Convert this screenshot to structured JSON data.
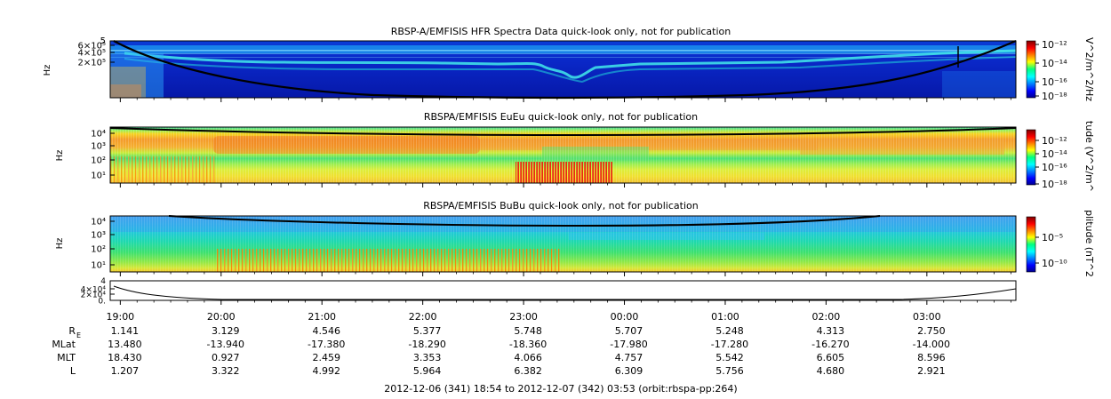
{
  "chart_data": [
    {
      "type": "heatmap",
      "title": "RBSP-A/EMFISIS  HFR Spectra Data quick-look only, not for publication",
      "ylabel": "Hz",
      "yticks": [
        "6×10⁵",
        "4×10⁵",
        "2×10⁵"
      ],
      "y_top_label": "5",
      "ylim": [
        10000,
        600000
      ],
      "yscale": "log",
      "colorbar": {
        "label": "V^2/m^2/Hz",
        "ticks": [
          "10⁻¹²",
          "10⁻¹⁴",
          "10⁻¹⁶",
          "10⁻¹⁸"
        ],
        "range": [
          1e-18,
          1e-12
        ],
        "scale": "log"
      }
    },
    {
      "type": "heatmap",
      "title": "RBSPA/EMFISIS  EuEu quick-look only, not for publication",
      "ylabel": "Hz",
      "yticks": [
        "10⁴",
        "10³",
        "10²",
        "10¹"
      ],
      "ylim": [
        3,
        12000
      ],
      "yscale": "log",
      "colorbar": {
        "label": "tude (V^2/m^",
        "ticks": [
          "10⁻¹²",
          "10⁻¹⁴",
          "10⁻¹⁶",
          "10⁻¹⁸"
        ],
        "range": [
          1e-18,
          1e-12
        ],
        "scale": "log"
      }
    },
    {
      "type": "heatmap",
      "title": "RBSPA/EMFISIS  BuBu quick-look only, not for publication",
      "ylabel": "Hz",
      "yticks": [
        "10⁴",
        "10³",
        "10²",
        "10¹"
      ],
      "ylim": [
        3,
        12000
      ],
      "yscale": "log",
      "colorbar": {
        "label": "plitude (nT^2",
        "ticks": [
          "10⁻⁵",
          "10⁻¹⁰"
        ],
        "range": [
          1e-12,
          0.001
        ],
        "scale": "log"
      }
    },
    {
      "type": "line",
      "yticks": [
        "4×10⁴",
        "2×10⁴",
        "0."
      ],
      "y_top_label": "4",
      "ylim": [
        0,
        40000
      ]
    }
  ],
  "time_axis": {
    "ticks": [
      "19:00",
      "20:00",
      "21:00",
      "22:00",
      "23:00",
      "00:00",
      "01:00",
      "02:00",
      "03:00"
    ],
    "start_hour": 18.9,
    "end_hour": 27.883
  },
  "ephemeris": {
    "rows": [
      {
        "label": "R",
        "subscript": "E",
        "values": [
          "1.141",
          "3.129",
          "4.546",
          "5.377",
          "5.748",
          "5.707",
          "5.248",
          "4.313",
          "2.750"
        ]
      },
      {
        "label": "MLat",
        "subscript": "",
        "values": [
          "13.480",
          "-13.940",
          "-17.380",
          "-18.290",
          "-18.360",
          "-17.980",
          "-17.280",
          "-16.270",
          "-14.000"
        ]
      },
      {
        "label": "MLT",
        "subscript": "",
        "values": [
          "18.430",
          "0.927",
          "2.459",
          "3.353",
          "4.066",
          "4.757",
          "5.542",
          "6.605",
          "8.596"
        ]
      },
      {
        "label": "L",
        "subscript": "",
        "values": [
          "1.207",
          "3.322",
          "4.992",
          "5.964",
          "6.382",
          "6.309",
          "5.756",
          "4.680",
          "2.921"
        ]
      }
    ]
  },
  "footer": "2012-12-06 (341) 18:54 to 2012-12-07 (342) 03:53 (orbit:rbspa-pp:264)"
}
